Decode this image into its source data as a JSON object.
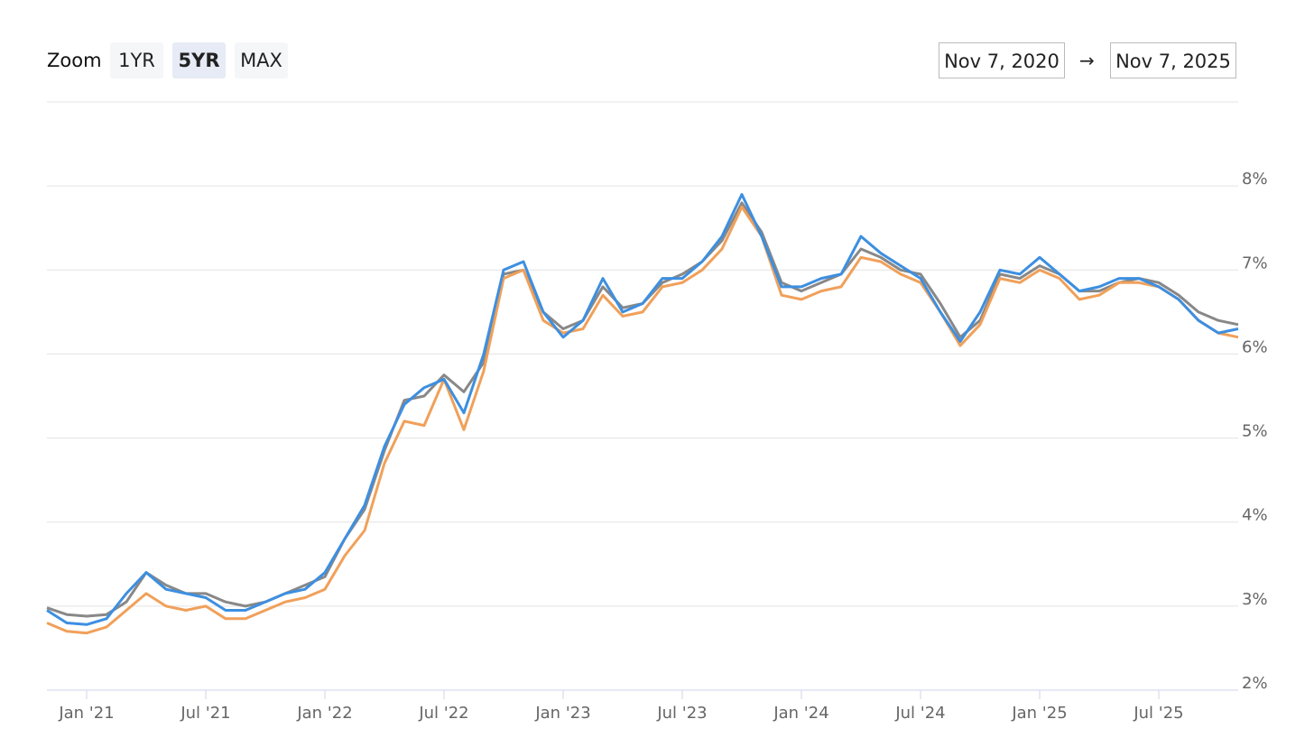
{
  "controls": {
    "zoom_label": "Zoom",
    "zoom_options": [
      "1YR",
      "5YR",
      "MAX"
    ],
    "zoom_selected": 1,
    "range": {
      "from": "Nov 7, 2020",
      "arrow": "→",
      "to": "Nov 7, 2025"
    }
  },
  "chart_data": {
    "type": "line",
    "x": [
      "2020-11",
      "2020-12",
      "2021-01",
      "2021-02",
      "2021-03",
      "2021-04",
      "2021-05",
      "2021-06",
      "2021-07",
      "2021-08",
      "2021-09",
      "2021-10",
      "2021-11",
      "2021-12",
      "2022-01",
      "2022-02",
      "2022-03",
      "2022-04",
      "2022-05",
      "2022-06",
      "2022-07",
      "2022-08",
      "2022-09",
      "2022-10",
      "2022-11",
      "2022-12",
      "2023-01",
      "2023-02",
      "2023-03",
      "2023-04",
      "2023-05",
      "2023-06",
      "2023-07",
      "2023-08",
      "2023-09",
      "2023-10",
      "2023-11",
      "2023-12",
      "2024-01",
      "2024-02",
      "2024-03",
      "2024-04",
      "2024-05",
      "2024-06",
      "2024-07",
      "2024-08",
      "2024-09",
      "2024-10",
      "2024-11",
      "2024-12",
      "2025-01",
      "2025-02",
      "2025-03",
      "2025-04",
      "2025-05",
      "2025-06",
      "2025-07",
      "2025-08",
      "2025-09",
      "2025-10",
      "2025-11"
    ],
    "series": [
      {
        "color": "#3d8fe0",
        "values": [
          2.95,
          2.8,
          2.78,
          2.85,
          3.15,
          3.4,
          3.2,
          3.15,
          3.1,
          2.95,
          2.95,
          3.05,
          3.15,
          3.2,
          3.4,
          3.8,
          4.2,
          4.9,
          5.4,
          5.6,
          5.7,
          5.3,
          6.0,
          7.0,
          7.1,
          6.5,
          6.2,
          6.4,
          6.9,
          6.5,
          6.6,
          6.9,
          6.9,
          7.1,
          7.4,
          7.9,
          7.4,
          6.8,
          6.8,
          6.9,
          6.95,
          7.4,
          7.2,
          7.05,
          6.9,
          6.5,
          6.15,
          6.5,
          7.0,
          6.95,
          7.15,
          6.95,
          6.75,
          6.8,
          6.9,
          6.9,
          6.8,
          6.65,
          6.4,
          6.25,
          6.3
        ]
      },
      {
        "color": "#888888",
        "values": [
          2.98,
          2.9,
          2.88,
          2.9,
          3.05,
          3.4,
          3.25,
          3.15,
          3.15,
          3.05,
          3.0,
          3.05,
          3.15,
          3.25,
          3.35,
          3.8,
          4.15,
          4.85,
          5.45,
          5.5,
          5.75,
          5.55,
          5.9,
          6.95,
          7.0,
          6.5,
          6.3,
          6.4,
          6.8,
          6.55,
          6.6,
          6.85,
          6.95,
          7.1,
          7.35,
          7.8,
          7.45,
          6.85,
          6.75,
          6.85,
          6.95,
          7.25,
          7.15,
          7.0,
          6.95,
          6.6,
          6.2,
          6.4,
          6.95,
          6.9,
          7.05,
          6.95,
          6.75,
          6.75,
          6.85,
          6.9,
          6.85,
          6.7,
          6.5,
          6.4,
          6.35
        ]
      },
      {
        "color": "#f0a05a",
        "values": [
          2.8,
          2.7,
          2.68,
          2.75,
          2.95,
          3.15,
          3.0,
          2.95,
          3.0,
          2.85,
          2.85,
          2.95,
          3.05,
          3.1,
          3.2,
          3.6,
          3.9,
          4.7,
          5.2,
          5.15,
          5.7,
          5.1,
          5.8,
          6.9,
          7.0,
          6.4,
          6.25,
          6.3,
          6.7,
          6.45,
          6.5,
          6.8,
          6.85,
          7.0,
          7.25,
          7.75,
          7.4,
          6.7,
          6.65,
          6.75,
          6.8,
          7.15,
          7.1,
          6.95,
          6.85,
          6.5,
          6.1,
          6.35,
          6.9,
          6.85,
          7.0,
          6.9,
          6.65,
          6.7,
          6.85,
          6.85,
          6.8,
          6.65,
          6.4,
          6.25,
          6.2
        ]
      }
    ],
    "xlim": [
      "2020-11",
      "2025-11"
    ],
    "xticks": [
      {
        "value": "2021-01",
        "label": "Jan '21"
      },
      {
        "value": "2021-07",
        "label": "Jul '21"
      },
      {
        "value": "2022-01",
        "label": "Jan '22"
      },
      {
        "value": "2022-07",
        "label": "Jul '22"
      },
      {
        "value": "2023-01",
        "label": "Jan '23"
      },
      {
        "value": "2023-07",
        "label": "Jul '23"
      },
      {
        "value": "2024-01",
        "label": "Jan '24"
      },
      {
        "value": "2024-07",
        "label": "Jul '24"
      },
      {
        "value": "2025-01",
        "label": "Jan '25"
      },
      {
        "value": "2025-07",
        "label": "Jul '25"
      }
    ],
    "ylim": [
      2,
      9
    ],
    "yticks": [
      {
        "value": 2,
        "label": "2%"
      },
      {
        "value": 3,
        "label": "3%"
      },
      {
        "value": 4,
        "label": "4%"
      },
      {
        "value": 5,
        "label": "5%"
      },
      {
        "value": 6,
        "label": "6%"
      },
      {
        "value": 7,
        "label": "7%"
      },
      {
        "value": 8,
        "label": "8%"
      }
    ],
    "grid": true
  }
}
